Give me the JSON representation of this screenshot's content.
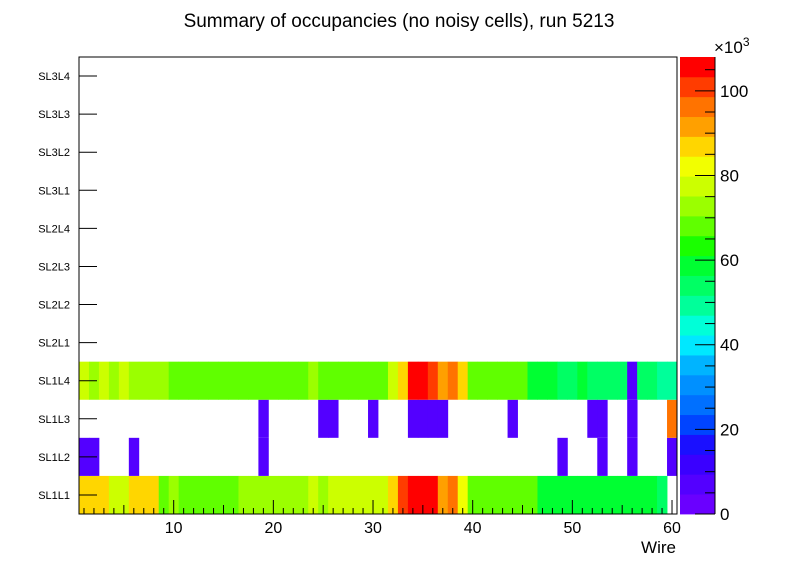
{
  "chart_data": {
    "type": "heatmap",
    "title": "Summary of occupancies (no noisy cells), run 5213",
    "xlabel": "Wire",
    "ylabel": "",
    "xlim": [
      0.5,
      60.5
    ],
    "x_ticks": [
      "10",
      "20",
      "30",
      "40",
      "50",
      "60"
    ],
    "x_tick_values": [
      10,
      20,
      30,
      40,
      50,
      60
    ],
    "y_categories": [
      "SL1L1",
      "SL1L2",
      "SL1L3",
      "SL1L4",
      "SL2L1",
      "SL2L2",
      "SL2L3",
      "SL2L4",
      "SL3L1",
      "SL3L2",
      "SL3L3",
      "SL3L4"
    ],
    "colorbar": {
      "min": 0,
      "max": 108,
      "exponent_label": "×10",
      "exponent_power": "3",
      "ticks": [
        "0",
        "20",
        "40",
        "60",
        "80",
        "100"
      ],
      "tick_values": [
        0,
        20,
        40,
        60,
        80,
        100
      ]
    },
    "rows": {
      "SL1L1": [
        85,
        85,
        85,
        78,
        78,
        85,
        85,
        85,
        70,
        74,
        66,
        66,
        66,
        70,
        66,
        66,
        74,
        74,
        74,
        74,
        74,
        74,
        74,
        78,
        74,
        78,
        78,
        78,
        78,
        78,
        78,
        88,
        100,
        104,
        104,
        104,
        92,
        96,
        84,
        70,
        66,
        66,
        66,
        66,
        66,
        66,
        60,
        60,
        60,
        60,
        60,
        60,
        60,
        60,
        60,
        60,
        60,
        60,
        52,
        0
      ],
      "SL1L2": [
        5,
        5,
        0,
        0,
        0,
        5,
        0,
        0,
        0,
        0,
        0,
        0,
        0,
        0,
        0,
        0,
        0,
        0,
        5,
        0,
        0,
        0,
        0,
        0,
        0,
        0,
        0,
        0,
        0,
        0,
        0,
        0,
        0,
        0,
        0,
        0,
        0,
        0,
        0,
        0,
        0,
        0,
        0,
        0,
        0,
        0,
        0,
        0,
        5,
        0,
        0,
        0,
        5,
        0,
        0,
        5,
        0,
        0,
        0,
        5
      ],
      "SL1L3": [
        0,
        0,
        0,
        0,
        0,
        0,
        0,
        0,
        0,
        0,
        0,
        0,
        0,
        0,
        0,
        0,
        0,
        0,
        5,
        0,
        0,
        0,
        0,
        0,
        5,
        5,
        0,
        0,
        0,
        5,
        0,
        0,
        0,
        5,
        5,
        5,
        5,
        0,
        0,
        0,
        0,
        0,
        0,
        5,
        0,
        0,
        0,
        0,
        0,
        0,
        0,
        5,
        5,
        0,
        0,
        5,
        0,
        0,
        0,
        96
      ],
      "SL1L4": [
        78,
        74,
        78,
        74,
        78,
        74,
        74,
        74,
        74,
        70,
        66,
        66,
        70,
        66,
        66,
        70,
        66,
        66,
        70,
        70,
        70,
        70,
        70,
        74,
        70,
        66,
        66,
        66,
        66,
        66,
        66,
        78,
        85,
        104,
        104,
        100,
        92,
        96,
        85,
        70,
        66,
        66,
        66,
        66,
        66,
        60,
        60,
        60,
        56,
        56,
        60,
        56,
        56,
        56,
        56,
        8,
        56,
        56,
        50,
        50
      ]
    }
  }
}
